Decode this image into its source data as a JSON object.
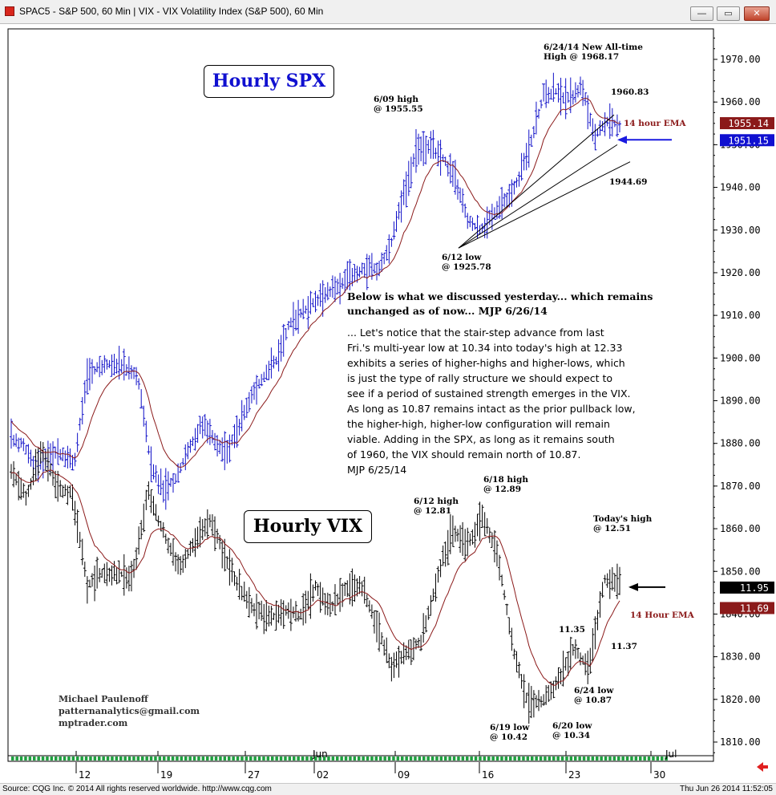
{
  "window": {
    "title": "SPAC5 - S&P 500, 60 Min   |   VIX - VIX Volatility Index (S&P 500), 60 Min",
    "buttons": [
      "—",
      "▭",
      "✕"
    ]
  },
  "status": {
    "source": "Source: CQG Inc. © 2014 All rights reserved worldwide. http://www.cqg.com",
    "timestamp": "Thu Jun 26 2014 11:52:05"
  },
  "labels": {
    "spx_box": "Hourly SPX",
    "vix_box": "Hourly VIX"
  },
  "note": {
    "header": [
      "Below is what we discussed yesterday... which remains",
      "unchanged as of now... MJP 6/26/14"
    ],
    "body": [
      "... Let's notice that the stair-step advance from last",
      "Fri.'s multi-year low at 10.34 into today's high at 12.33",
      "exhibits a series of higher-highs and higher-lows, which",
      "is just the type of rally structure we should expect to",
      "see if a period of sustained strength emerges in the VIX.",
      "As long as 10.87 remains intact as the prior pullback low,",
      "the higher-high, higher-low configuration will remain",
      "viable. Adding in the SPX, as long as it remains south",
      "of 1960, the VIX should remain north of 10.87.",
      "MJP  6/25/14"
    ]
  },
  "credit": [
    "Michael Paulenoff",
    "patternanalytics@gmail.com",
    "mptrader.com"
  ],
  "colors": {
    "spx": "#1010c8",
    "vix": "#000000",
    "ema": "#8b1a1a",
    "arrow": "#1a1ae0",
    "price_box_spx": "#1010d0",
    "price_box_ema": "#8b1a1a"
  },
  "chart_data": {
    "type": "line",
    "title": "",
    "y_axis": {
      "ticks": [
        1970,
        1960,
        1950,
        1940,
        1930,
        1920,
        1910,
        1900,
        1890,
        1880,
        1870,
        1860,
        1850,
        1840,
        1830,
        1820,
        1810
      ],
      "tick_labels": [
        "1970.00",
        "1960.00",
        "1950.00",
        "1940.00",
        "1930.00",
        "1920.00",
        "1910.00",
        "1900.00",
        "1890.00",
        "1880.00",
        "1870.00",
        "1860.00",
        "1850.00",
        "1840.00",
        "1830.00",
        "1820.00",
        "1810.00"
      ],
      "ylim": [
        1806,
        1982
      ]
    },
    "x_axis": {
      "date_labels": [
        "12",
        "19",
        "27",
        "02",
        "09",
        "16",
        "23",
        "30"
      ],
      "month_labels": [
        "Jun",
        "Jul"
      ]
    },
    "price_boxes": [
      {
        "label": "1955.14",
        "value": 1955.14,
        "series": "SPX 14 hour EMA"
      },
      {
        "label": "1951.15",
        "value": 1951.15,
        "series": "SPX"
      },
      {
        "label": "11.95",
        "value": 1846.3,
        "series": "VIX"
      },
      {
        "label": "11.69",
        "value": 1841.5,
        "series": "VIX 14 hour EMA"
      }
    ],
    "series": [
      {
        "name": "SPX",
        "points": [
          [
            1887,
            1875
          ],
          [
            1882,
            1877
          ],
          [
            1876,
            1872
          ],
          [
            1885,
            1870
          ],
          [
            1880,
            1874
          ],
          [
            1873,
            1879
          ],
          [
            1895,
            1897
          ],
          [
            1900,
            1896
          ],
          [
            1898,
            1900
          ],
          [
            1897,
            1898
          ],
          [
            1895,
            1896
          ],
          [
            1880,
            1870
          ],
          [
            1872,
            1866
          ],
          [
            1876,
            1868
          ],
          [
            1880,
            1877
          ],
          [
            1886,
            1883
          ],
          [
            1884,
            1878
          ],
          [
            1876,
            1880
          ],
          [
            1882,
            1886
          ],
          [
            1892,
            1891
          ],
          [
            1895,
            1897
          ],
          [
            1900,
            1900
          ],
          [
            1908,
            1909
          ],
          [
            1910,
            1912
          ],
          [
            1912,
            1914
          ],
          [
            1916,
            1915
          ],
          [
            1916,
            1918
          ],
          [
            1921,
            1918
          ],
          [
            1920,
            1922
          ],
          [
            1920,
            1921
          ],
          [
            1925,
            1930
          ],
          [
            1935,
            1942
          ],
          [
            1946,
            1953
          ],
          [
            1950,
            1949
          ],
          [
            1948,
            1946
          ],
          [
            1945,
            1940
          ],
          [
            1935,
            1929
          ],
          [
            1928,
            1932
          ],
          [
            1932,
            1935
          ],
          [
            1936,
            1938
          ],
          [
            1940,
            1943
          ],
          [
            1947,
            1955
          ],
          [
            1960,
            1963
          ],
          [
            1964,
            1961
          ],
          [
            1959,
            1962
          ],
          [
            1965,
            1963
          ],
          [
            1955,
            1949
          ],
          [
            1953,
            1958
          ],
          [
            1958,
            1951
          ]
        ]
      },
      {
        "name": "VIX",
        "points_note": "rendered on same price scale"
      }
    ],
    "annotations": [
      {
        "text": "6/24/14 New All-time High @ 1968.17"
      },
      {
        "text": "6/09 high @ 1955.55"
      },
      {
        "text": "1960.83"
      },
      {
        "text": "14 hour EMA"
      },
      {
        "text": "1944.69"
      },
      {
        "text": "6/12 low @ 1925.78"
      },
      {
        "text": "6/12 high @ 12.81"
      },
      {
        "text": "6/18 high @ 12.89"
      },
      {
        "text": "Today's high @ 12.51"
      },
      {
        "text": "14 Hour EMA"
      },
      {
        "text": "11.35"
      },
      {
        "text": "11.37"
      },
      {
        "text": "6/24 low @ 10.87"
      },
      {
        "text": "6/19 low @ 10.42"
      },
      {
        "text": "6/20 low @ 10.34"
      }
    ]
  }
}
